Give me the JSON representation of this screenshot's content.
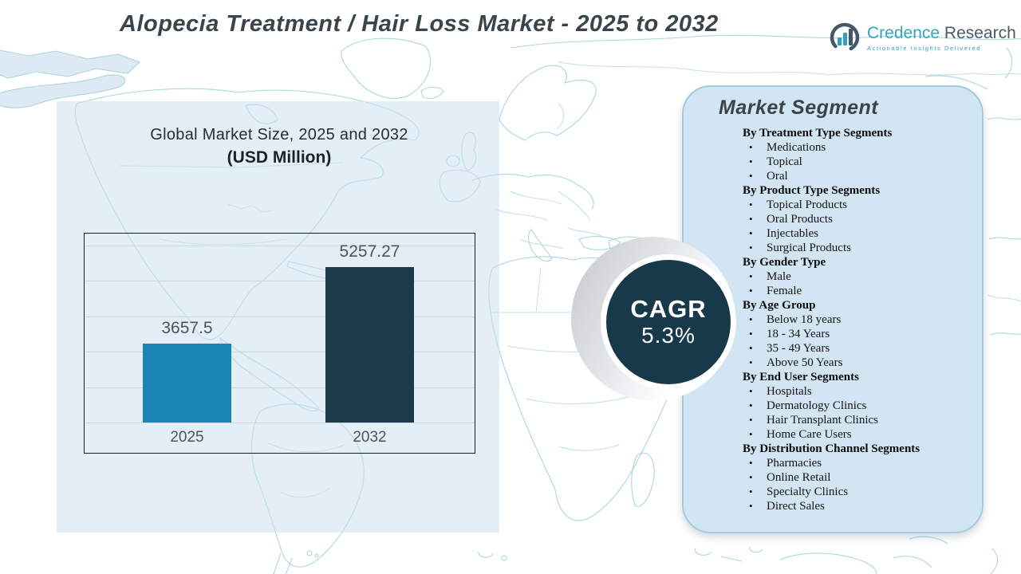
{
  "header": {
    "title": "Alopecia Treatment / Hair Loss Market - 2025 to 2032",
    "logo": {
      "name_primary": "Credence",
      "name_secondary": "Research",
      "tagline": "Actionable Insights Delivered"
    }
  },
  "chart": {
    "title_line1": "Global Market Size, 2025 and 2032",
    "title_line2": "(USD Million)"
  },
  "chart_data": {
    "type": "bar",
    "title": "Global Market Size, 2025 and 2032 (USD Million)",
    "categories": [
      "2025",
      "2032"
    ],
    "values": [
      3657.5,
      5257.27
    ],
    "xlabel": "",
    "ylabel": "",
    "ylim": [
      2000,
      5700
    ],
    "grid": true,
    "legend": false,
    "bar_colors": [
      "#1a84b4",
      "#1c3b4a"
    ]
  },
  "cagr": {
    "label": "CAGR",
    "value": "5.3%"
  },
  "market_segment": {
    "title": "Market Segment",
    "groups": [
      {
        "heading": "By Treatment Type Segments",
        "items": [
          "Medications",
          "Topical",
          "Oral"
        ]
      },
      {
        "heading": "By Product Type Segments",
        "items": [
          "Topical Products",
          "Oral Products",
          "Injectables",
          "Surgical Products"
        ]
      },
      {
        "heading": "By Gender Type",
        "items": [
          "Male",
          "Female"
        ]
      },
      {
        "heading": "By Age Group",
        "items": [
          "Below 18 years",
          "18 - 34 Years",
          "35 - 49 Years",
          "Above 50 Years"
        ]
      },
      {
        "heading": "By End User Segments",
        "items": [
          "Hospitals",
          "Dermatology Clinics",
          "Hair Transplant Clinics",
          "Home Care Users"
        ]
      },
      {
        "heading": "By Distribution Channel Segments",
        "items": [
          "Pharmacies",
          "Online Retail",
          "Specialty Clinics",
          "Direct Sales"
        ]
      }
    ]
  },
  "colors": {
    "bar_2025": "#1a84b4",
    "bar_2032": "#1c3b4a",
    "cagr_circle": "#17394a",
    "segment_panel": "#d2e5f2",
    "map_outline": "#a9d6de",
    "brand_teal": "#2fa3c2",
    "brand_slate": "#4a5a68",
    "title_text": "#39444d"
  }
}
